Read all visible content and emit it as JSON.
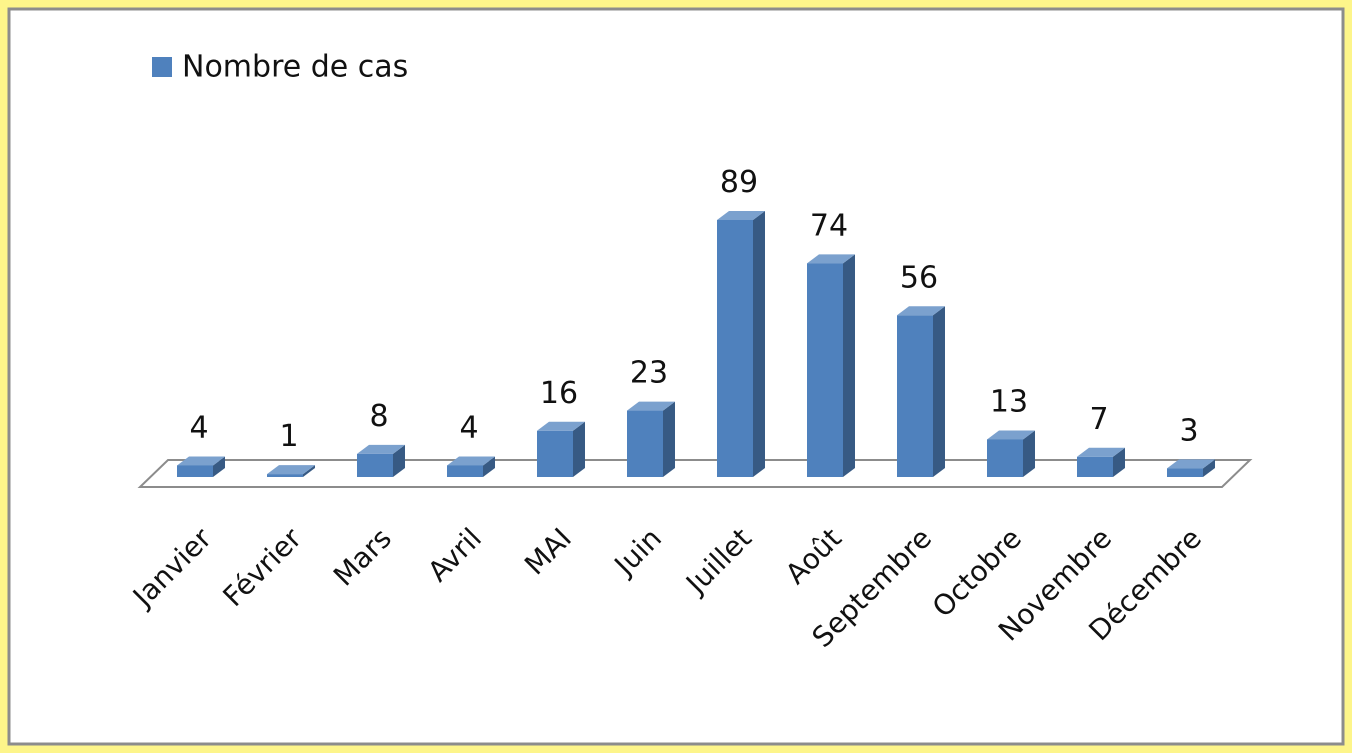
{
  "chart_data": {
    "type": "bar3d",
    "categories": [
      "Janvier",
      "Février",
      "Mars",
      "Avril",
      "MAI",
      "Juin",
      "Juillet",
      "Août",
      "Septembre",
      "Octobre",
      "Novembre",
      "Décembre"
    ],
    "series": [
      {
        "name": "Nombre de cas",
        "color": "#4f81bd",
        "values": [
          4,
          1,
          8,
          4,
          16,
          23,
          89,
          74,
          56,
          13,
          7,
          3
        ]
      }
    ],
    "legend": "top-left",
    "grid": false
  }
}
